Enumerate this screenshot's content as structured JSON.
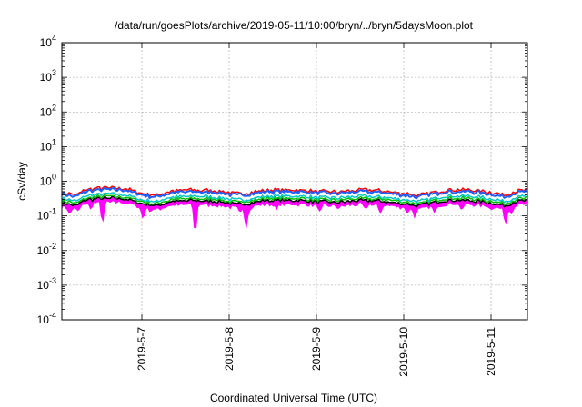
{
  "chart_data": {
    "type": "line",
    "title": "/data/run/goesPlots/archive/2019-05-11/10:00/bryn/../bryn/5daysMoon.plot",
    "xlabel": "Coordinated Universal Time (UTC)",
    "ylabel": "cSv/day",
    "yscale": "log",
    "ylim": [
      0.0001,
      10000
    ],
    "y_ticks": [
      {
        "base": "10",
        "exp": "-4",
        "value": 0.0001
      },
      {
        "base": "10",
        "exp": "-3",
        "value": 0.001
      },
      {
        "base": "10",
        "exp": "-2",
        "value": 0.01
      },
      {
        "base": "10",
        "exp": "-1",
        "value": 0.1
      },
      {
        "base": "10",
        "exp": "0",
        "value": 1
      },
      {
        "base": "10",
        "exp": "1",
        "value": 10
      },
      {
        "base": "10",
        "exp": "2",
        "value": 100
      },
      {
        "base": "10",
        "exp": "3",
        "value": 1000
      },
      {
        "base": "10",
        "exp": "4",
        "value": 10000
      }
    ],
    "xlim": [
      "2019-05-06 02:00",
      "2019-05-11 10:00"
    ],
    "x_ticks": [
      "2019-5-7",
      "2019-5-8",
      "2019-5-9",
      "2019-5-10",
      "2019-5-11"
    ],
    "x_tick_values": [
      "2019-05-07 00:00",
      "2019-05-08 00:00",
      "2019-05-09 00:00",
      "2019-05-10 00:00",
      "2019-05-11 00:00"
    ],
    "grid": true,
    "legend": "none",
    "series": [
      {
        "color": "#ff00ff",
        "style": "filled band",
        "baseline": 0.22,
        "dips": [
          {
            "t": "2019-05-06 04:10",
            "value": 0.11
          },
          {
            "t": "2019-05-06 06:30",
            "value": 0.14
          },
          {
            "t": "2019-05-06 10:00",
            "value": 0.15
          },
          {
            "t": "2019-05-06 13:10",
            "value": 0.055
          },
          {
            "t": "2019-05-07 00:20",
            "value": 0.075
          },
          {
            "t": "2019-05-07 02:20",
            "value": 0.13
          },
          {
            "t": "2019-05-07 14:40",
            "value": 0.024
          },
          {
            "t": "2019-05-08 03:00",
            "value": 0.12
          },
          {
            "t": "2019-05-08 04:40",
            "value": 0.042
          },
          {
            "t": "2019-05-08 05:50",
            "value": 0.14
          },
          {
            "t": "2019-05-08 13:00",
            "value": 0.15
          },
          {
            "t": "2019-05-09 01:00",
            "value": 0.13
          },
          {
            "t": "2019-05-09 06:00",
            "value": 0.16
          },
          {
            "t": "2019-05-09 13:30",
            "value": 0.15
          },
          {
            "t": "2019-05-09 17:30",
            "value": 0.11
          },
          {
            "t": "2019-05-10 01:00",
            "value": 0.12
          },
          {
            "t": "2019-05-10 03:00",
            "value": 0.09
          },
          {
            "t": "2019-05-10 08:30",
            "value": 0.12
          },
          {
            "t": "2019-05-10 16:00",
            "value": 0.14
          },
          {
            "t": "2019-05-11 00:00",
            "value": 0.15
          },
          {
            "t": "2019-05-11 04:00",
            "value": 0.055
          },
          {
            "t": "2019-05-11 05:40",
            "value": 0.11
          }
        ]
      },
      {
        "color": "#000000",
        "baseline": 0.28
      },
      {
        "color": "#00c000",
        "baseline": 0.32
      },
      {
        "color": "#00c8c8",
        "baseline": 0.37
      },
      {
        "color": "#ff0000",
        "baseline": 0.56
      },
      {
        "color": "#2060ff",
        "baseline": 0.5
      }
    ],
    "profile": [
      {
        "t": "2019-05-06 02:00",
        "factor": 0.85
      },
      {
        "t": "2019-05-06 06:00",
        "factor": 0.72
      },
      {
        "t": "2019-05-06 09:00",
        "factor": 1.05
      },
      {
        "t": "2019-05-06 14:00",
        "factor": 1.15
      },
      {
        "t": "2019-05-06 19:00",
        "factor": 1.12
      },
      {
        "t": "2019-05-07 00:00",
        "factor": 0.8
      },
      {
        "t": "2019-05-07 04:00",
        "factor": 0.7
      },
      {
        "t": "2019-05-07 08:00",
        "factor": 0.92
      },
      {
        "t": "2019-05-07 14:00",
        "factor": 1.0
      },
      {
        "t": "2019-05-07 20:00",
        "factor": 0.95
      },
      {
        "t": "2019-05-08 02:00",
        "factor": 0.78
      },
      {
        "t": "2019-05-08 06:00",
        "factor": 0.85
      },
      {
        "t": "2019-05-08 10:00",
        "factor": 1.0
      },
      {
        "t": "2019-05-08 18:00",
        "factor": 1.02
      },
      {
        "t": "2019-05-09 00:00",
        "factor": 0.92
      },
      {
        "t": "2019-05-09 06:00",
        "factor": 0.88
      },
      {
        "t": "2019-05-09 12:00",
        "factor": 1.0
      },
      {
        "t": "2019-05-09 18:00",
        "factor": 0.95
      },
      {
        "t": "2019-05-10 00:00",
        "factor": 0.8
      },
      {
        "t": "2019-05-10 04:00",
        "factor": 0.7
      },
      {
        "t": "2019-05-10 08:00",
        "factor": 0.85
      },
      {
        "t": "2019-05-10 12:00",
        "factor": 1.02
      },
      {
        "t": "2019-05-10 18:00",
        "factor": 1.0
      },
      {
        "t": "2019-05-11 00:00",
        "factor": 0.85
      },
      {
        "t": "2019-05-11 04:00",
        "factor": 0.72
      },
      {
        "t": "2019-05-11 07:00",
        "factor": 0.95
      },
      {
        "t": "2019-05-11 10:00",
        "factor": 1.0
      }
    ]
  }
}
